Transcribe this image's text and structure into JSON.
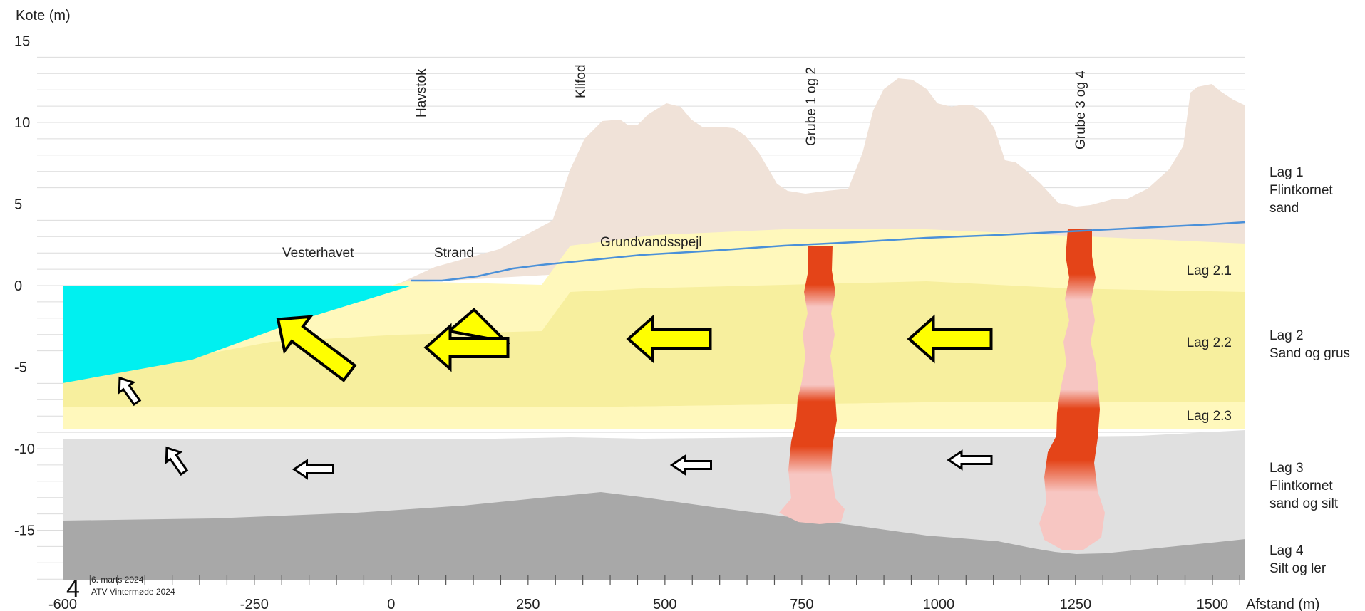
{
  "chart_data": {
    "type": "diagram",
    "ylabel": "Kote (m)",
    "xlabel": "Afstand (m)",
    "x_ticks": [
      "-600",
      "-250",
      "0",
      "250",
      "500",
      "750",
      "1000",
      "1250",
      "1500"
    ],
    "y_ticks": [
      "15",
      "10",
      "5",
      "0",
      "-5",
      "-10",
      "-15"
    ],
    "xlim": [
      -600,
      1560
    ],
    "ylim": [
      -18.2,
      15
    ],
    "grid": true,
    "labels": {
      "sea": "Vesterhavet",
      "beach": "Strand",
      "groundwater": "Grundvandsspejl"
    },
    "vertical_labels": {
      "havstok": "Havstok",
      "klifod": "Klifod",
      "pit12": "Grube 1 og 2",
      "pit34": "Grube 3 og 4"
    },
    "layers": [
      {
        "lines": [
          "Lag 1",
          "Flintkornet",
          "sand"
        ]
      },
      {
        "lines": [
          "Lag 2.1"
        ]
      },
      {
        "lines": [
          "Lag 2.2"
        ]
      },
      {
        "lines": [
          "Lag 2",
          "Sand og grus"
        ]
      },
      {
        "lines": [
          "Lag 2.3"
        ]
      },
      {
        "lines": [
          "Lag 3",
          "Flintkornet",
          "sand og silt"
        ]
      },
      {
        "lines": [
          "Lag 4",
          "Silt og ler"
        ]
      }
    ],
    "colors": {
      "sea": "#00f0f0",
      "dune": "#f0e2d8",
      "layer2_1": "#fff8bc",
      "layer2_2": "#f7ef9e",
      "layer2_3": "#fff8bc",
      "layer3": "#e0e0e0",
      "layer4": "#a8a8a8",
      "plume_dark": "#e44418",
      "plume_light": "#f7c6c2",
      "groundwater_line": "#4a90d9",
      "arrow_large": "#ffff00",
      "arrow_small": "#ffffff"
    }
  },
  "footer": {
    "page_number": "4",
    "date": "6. marts 2024",
    "event": "ATV Vintermøde 2024"
  }
}
